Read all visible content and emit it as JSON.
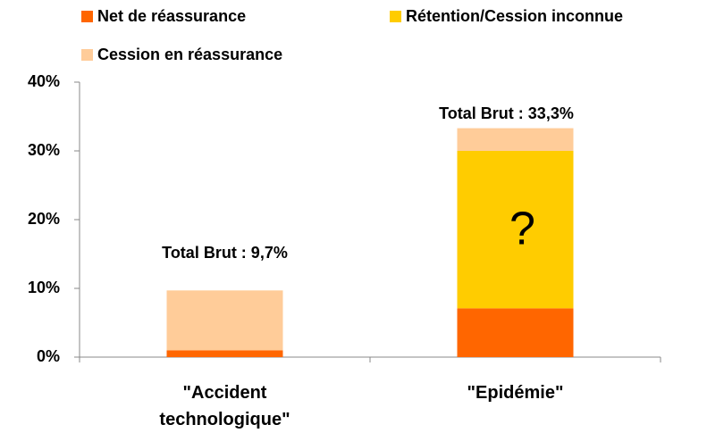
{
  "chart_data": {
    "type": "stacked_bar",
    "categories": [
      "\"Accident technologique\"",
      "\"Epidémie\""
    ],
    "series": [
      {
        "name": "Net de réassurance",
        "color": "#ff6600",
        "values": [
          1.0,
          7.1
        ]
      },
      {
        "name": "Rétention/Cession inconnue",
        "color": "#ffcc00",
        "values": [
          0,
          22.9
        ]
      },
      {
        "name": "Cession en réassurance",
        "color": "#ffcc99",
        "values": [
          8.7,
          3.3
        ]
      }
    ],
    "annotations": [
      "Total Brut : 9,7%",
      "Total Brut : 33,3%",
      "?"
    ],
    "ylim": [
      0,
      40
    ],
    "yticks": [
      {
        "value": 0,
        "label": "0%"
      },
      {
        "value": 10,
        "label": "10%"
      },
      {
        "value": 20,
        "label": "20%"
      },
      {
        "value": 30,
        "label": "30%"
      },
      {
        "value": 40,
        "label": "40%"
      }
    ],
    "legend": "top"
  }
}
